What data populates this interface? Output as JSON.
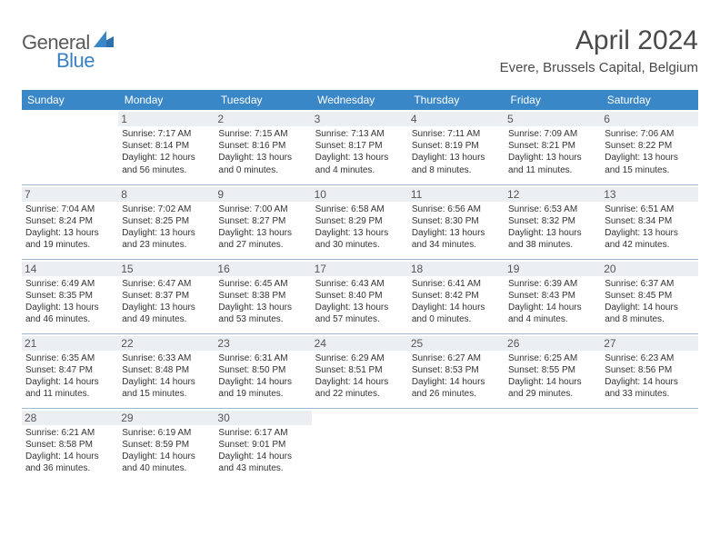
{
  "brand": {
    "part1": "General",
    "part2": "Blue"
  },
  "title": "April 2024",
  "location": "Evere, Brussels Capital, Belgium",
  "colors": {
    "header_bg": "#3a87c7",
    "header_text": "#ffffff",
    "daynum_bg": "#eceff2",
    "cell_border": "#9fb8cf",
    "text": "#333333",
    "brand_gray": "#5a5a5a",
    "brand_blue": "#3a7fc4",
    "page_bg": "#ffffff"
  },
  "day_headers": [
    "Sunday",
    "Monday",
    "Tuesday",
    "Wednesday",
    "Thursday",
    "Friday",
    "Saturday"
  ],
  "weeks": [
    [
      null,
      {
        "n": "1",
        "sr": "7:17 AM",
        "ss": "8:14 PM",
        "dl": "12 hours and 56 minutes."
      },
      {
        "n": "2",
        "sr": "7:15 AM",
        "ss": "8:16 PM",
        "dl": "13 hours and 0 minutes."
      },
      {
        "n": "3",
        "sr": "7:13 AM",
        "ss": "8:17 PM",
        "dl": "13 hours and 4 minutes."
      },
      {
        "n": "4",
        "sr": "7:11 AM",
        "ss": "8:19 PM",
        "dl": "13 hours and 8 minutes."
      },
      {
        "n": "5",
        "sr": "7:09 AM",
        "ss": "8:21 PM",
        "dl": "13 hours and 11 minutes."
      },
      {
        "n": "6",
        "sr": "7:06 AM",
        "ss": "8:22 PM",
        "dl": "13 hours and 15 minutes."
      }
    ],
    [
      {
        "n": "7",
        "sr": "7:04 AM",
        "ss": "8:24 PM",
        "dl": "13 hours and 19 minutes."
      },
      {
        "n": "8",
        "sr": "7:02 AM",
        "ss": "8:25 PM",
        "dl": "13 hours and 23 minutes."
      },
      {
        "n": "9",
        "sr": "7:00 AM",
        "ss": "8:27 PM",
        "dl": "13 hours and 27 minutes."
      },
      {
        "n": "10",
        "sr": "6:58 AM",
        "ss": "8:29 PM",
        "dl": "13 hours and 30 minutes."
      },
      {
        "n": "11",
        "sr": "6:56 AM",
        "ss": "8:30 PM",
        "dl": "13 hours and 34 minutes."
      },
      {
        "n": "12",
        "sr": "6:53 AM",
        "ss": "8:32 PM",
        "dl": "13 hours and 38 minutes."
      },
      {
        "n": "13",
        "sr": "6:51 AM",
        "ss": "8:34 PM",
        "dl": "13 hours and 42 minutes."
      }
    ],
    [
      {
        "n": "14",
        "sr": "6:49 AM",
        "ss": "8:35 PM",
        "dl": "13 hours and 46 minutes."
      },
      {
        "n": "15",
        "sr": "6:47 AM",
        "ss": "8:37 PM",
        "dl": "13 hours and 49 minutes."
      },
      {
        "n": "16",
        "sr": "6:45 AM",
        "ss": "8:38 PM",
        "dl": "13 hours and 53 minutes."
      },
      {
        "n": "17",
        "sr": "6:43 AM",
        "ss": "8:40 PM",
        "dl": "13 hours and 57 minutes."
      },
      {
        "n": "18",
        "sr": "6:41 AM",
        "ss": "8:42 PM",
        "dl": "14 hours and 0 minutes."
      },
      {
        "n": "19",
        "sr": "6:39 AM",
        "ss": "8:43 PM",
        "dl": "14 hours and 4 minutes."
      },
      {
        "n": "20",
        "sr": "6:37 AM",
        "ss": "8:45 PM",
        "dl": "14 hours and 8 minutes."
      }
    ],
    [
      {
        "n": "21",
        "sr": "6:35 AM",
        "ss": "8:47 PM",
        "dl": "14 hours and 11 minutes."
      },
      {
        "n": "22",
        "sr": "6:33 AM",
        "ss": "8:48 PM",
        "dl": "14 hours and 15 minutes."
      },
      {
        "n": "23",
        "sr": "6:31 AM",
        "ss": "8:50 PM",
        "dl": "14 hours and 19 minutes."
      },
      {
        "n": "24",
        "sr": "6:29 AM",
        "ss": "8:51 PM",
        "dl": "14 hours and 22 minutes."
      },
      {
        "n": "25",
        "sr": "6:27 AM",
        "ss": "8:53 PM",
        "dl": "14 hours and 26 minutes."
      },
      {
        "n": "26",
        "sr": "6:25 AM",
        "ss": "8:55 PM",
        "dl": "14 hours and 29 minutes."
      },
      {
        "n": "27",
        "sr": "6:23 AM",
        "ss": "8:56 PM",
        "dl": "14 hours and 33 minutes."
      }
    ],
    [
      {
        "n": "28",
        "sr": "6:21 AM",
        "ss": "8:58 PM",
        "dl": "14 hours and 36 minutes."
      },
      {
        "n": "29",
        "sr": "6:19 AM",
        "ss": "8:59 PM",
        "dl": "14 hours and 40 minutes."
      },
      {
        "n": "30",
        "sr": "6:17 AM",
        "ss": "9:01 PM",
        "dl": "14 hours and 43 minutes."
      },
      null,
      null,
      null,
      null
    ]
  ],
  "labels": {
    "sunrise": "Sunrise:",
    "sunset": "Sunset:",
    "daylight": "Daylight:"
  }
}
